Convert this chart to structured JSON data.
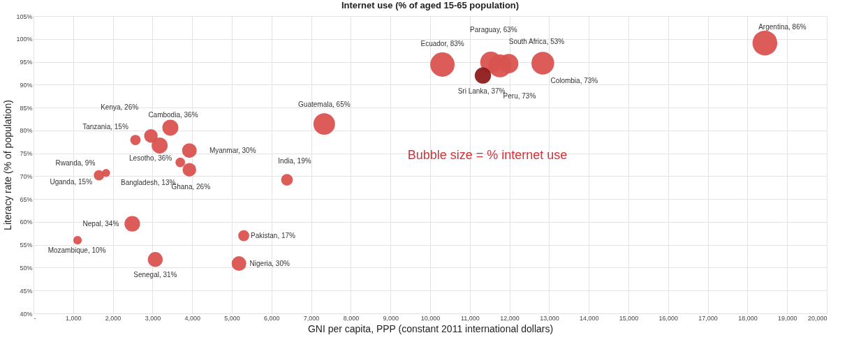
{
  "chart_data": {
    "type": "bubble",
    "title": "Internet use (% of aged 15-65 population)",
    "xlabel": "GNI per capita, PPP (constant 2011 international dollars)",
    "ylabel": "Literacy rate (% of population)",
    "x": [
      18440,
      10310,
      11530,
      11760,
      11980,
      12840,
      7330,
      6390,
      2960,
      3450,
      2570,
      3180,
      3930,
      3700,
      3930,
      1830,
      1650,
      2490,
      1110,
      3070,
      5300,
      5180,
      11330
    ],
    "values": [
      99.1,
      94.4,
      94.9,
      94.1,
      94.6,
      94.7,
      81.4,
      69.2,
      78.8,
      80.6,
      77.9,
      76.7,
      75.6,
      73.0,
      71.4,
      70.7,
      70.2,
      59.6,
      56.0,
      51.8,
      57.0,
      50.9,
      92.0
    ],
    "sizes": [
      86,
      83,
      63,
      73,
      53,
      73,
      65,
      19,
      26,
      36,
      15,
      36,
      30,
      13,
      26,
      9,
      15,
      34,
      10,
      31,
      17,
      30,
      37
    ],
    "value_labels": [
      "Argentina, 86%",
      "Ecuador, 83%",
      "Paraguay, 63%",
      "Peru, 73%",
      "South Africa, 53%",
      "Colombia, 73%",
      "Guatemala, 65%",
      "India, 19%",
      "Kenya, 26%",
      "Cambodia, 36%",
      "Tanzania, 15%",
      "Lesotho, 36%",
      "Myanmar, 30%",
      "Bangladesh, 13%",
      "Ghana, 26%",
      "Rwanda, 9%",
      "Uganda, 15%",
      "Nepal, 34%",
      "Mozambique, 10%",
      "Senegal, 31%",
      "Pakistan, 17%",
      "Nigeria, 30%",
      "Sri Lanka, 37%"
    ],
    "colors": [
      "#d9534f",
      "#d9534f",
      "#d9534f",
      "#d9534f",
      "#d9534f",
      "#d9534f",
      "#d9534f",
      "#d9534f",
      "#d9534f",
      "#d9534f",
      "#d9534f",
      "#d9534f",
      "#d9534f",
      "#d9534f",
      "#d9534f",
      "#d9534f",
      "#d9534f",
      "#d9534f",
      "#d9534f",
      "#d9534f",
      "#d9534f",
      "#d9534f",
      "#8e1b1b"
    ],
    "xlim": [
      0,
      20000
    ],
    "xticks": [
      {
        "value": 0,
        "label": "-"
      },
      {
        "value": 1000,
        "label": "1,000"
      },
      {
        "value": 2000,
        "label": "2,000"
      },
      {
        "value": 3000,
        "label": "3,000"
      },
      {
        "value": 4000,
        "label": "4,000"
      },
      {
        "value": 5000,
        "label": "5,000"
      },
      {
        "value": 6000,
        "label": "6,000"
      },
      {
        "value": 7000,
        "label": "7,000"
      },
      {
        "value": 8000,
        "label": "8,000"
      },
      {
        "value": 9000,
        "label": "9,000"
      },
      {
        "value": 10000,
        "label": "10,000"
      },
      {
        "value": 11000,
        "label": "11,000"
      },
      {
        "value": 12000,
        "label": "12,000"
      },
      {
        "value": 13000,
        "label": "13,000"
      },
      {
        "value": 14000,
        "label": "14,000"
      },
      {
        "value": 15000,
        "label": "15,000"
      },
      {
        "value": 16000,
        "label": "16,000"
      },
      {
        "value": 17000,
        "label": "17,000"
      },
      {
        "value": 18000,
        "label": "18,000"
      },
      {
        "value": 19000,
        "label": "19,000"
      },
      {
        "value": 20000,
        "label": "20,000"
      }
    ],
    "ylim": [
      40,
      105
    ],
    "yticks": [
      {
        "value": 40,
        "label": "40%"
      },
      {
        "value": 45,
        "label": "45%"
      },
      {
        "value": 50,
        "label": "50%"
      },
      {
        "value": 55,
        "label": "55%"
      },
      {
        "value": 60,
        "label": "60%"
      },
      {
        "value": 65,
        "label": "65%"
      },
      {
        "value": 70,
        "label": "70%"
      },
      {
        "value": 75,
        "label": "75%"
      },
      {
        "value": 80,
        "label": "80%"
      },
      {
        "value": 85,
        "label": "85%"
      },
      {
        "value": 90,
        "label": "90%"
      },
      {
        "value": 95,
        "label": "95%"
      },
      {
        "value": 100,
        "label": "100%"
      },
      {
        "value": 105,
        "label": "105%"
      }
    ],
    "annotations": [
      "Bubble size = % internet use"
    ],
    "grid": true
  }
}
